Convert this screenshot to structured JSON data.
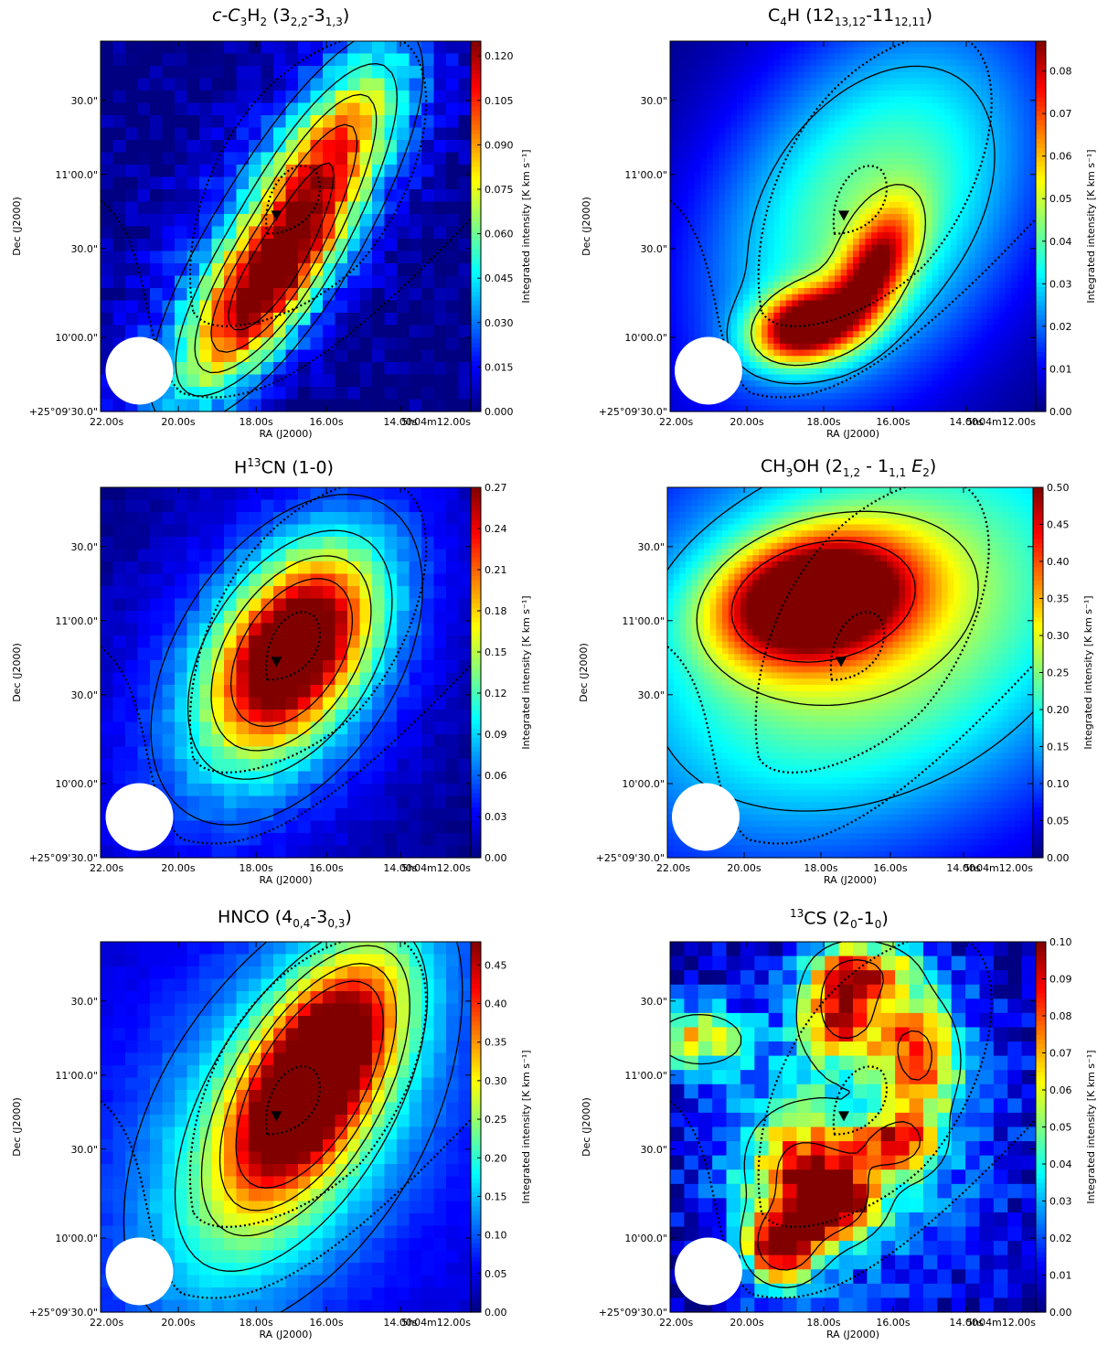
{
  "figure": {
    "panels": [
      {
        "title": {
          "main": "c-C",
          "s1": "3",
          "m2": "H",
          "s2": "2",
          "m3": " (3",
          "s3": "2,2",
          "m4": "-3",
          "s4": "1,3",
          "m5": ")"
        }
      },
      {
        "title": {
          "main": "C",
          "s1": "4",
          "m2": "H (12",
          "s2": "13,12",
          "m3": "-11",
          "s3": "12,11",
          "m4": ")",
          "s4": "",
          "m5": ""
        }
      },
      {
        "title": {
          "sup": "13",
          "main": "H",
          "m2": "CN (1-0)"
        }
      },
      {
        "title": {
          "main": "CH",
          "s1": "3",
          "m2": "OH (2",
          "s2": "1,2",
          "m3": " - 1",
          "s3": "1,1",
          "m4": " E",
          "s4": "2",
          "m5": ")"
        }
      },
      {
        "title": {
          "main": "HNCO (4",
          "s1": "0,4",
          "m2": "-3",
          "s2": "0,3",
          "m3": ")"
        }
      },
      {
        "title": {
          "sup": "13",
          "main": "CS (2",
          "s1": "0",
          "m2": "-1",
          "s2": "0",
          "m3": ")"
        }
      }
    ]
  },
  "chart_data": [
    {
      "type": "heatmap",
      "title": "c-C3H2 (3_2,2-3_1,3)",
      "xlabel": "RA (J2000)",
      "ylabel": "Dec (J2000)",
      "x_ticks": [
        "22.00s",
        "20.00s",
        "18.00s",
        "16.00s",
        "14.00s",
        "5h04m12.00s"
      ],
      "y_ticks": [
        "+25°09'30.0\"",
        "10'00.0\"",
        "30.0\"",
        "11'00.0\"",
        "30.0\""
      ],
      "colorbar_label": "Integrated intensity [K km s⁻¹]",
      "colorbar_ticks": [
        "0.000",
        "0.015",
        "0.030",
        "0.045",
        "0.060",
        "0.075",
        "0.090",
        "0.105",
        "0.120"
      ],
      "colorbar_range": [
        0,
        0.125
      ],
      "peak": [
        18.2,
        10.2
      ],
      "peak_value": 0.12,
      "colormap": "jet",
      "beam_marker": "white circle",
      "source_marker": "black triangle"
    },
    {
      "type": "heatmap",
      "title": "C4H (12_13,12-11_12,11)",
      "xlabel": "RA (J2000)",
      "ylabel": "Dec (J2000)",
      "x_ticks": [
        "22.00s",
        "20.00s",
        "18.00s",
        "16.00s",
        "14.00s",
        "5h04m12.00s"
      ],
      "y_ticks": [
        "+25°09'30.0\"",
        "10'00.0\"",
        "30.0\"",
        "11'00.0\"",
        "30.0\""
      ],
      "colorbar_label": "Integrated intensity [K km s⁻¹]",
      "colorbar_ticks": [
        "0.00",
        "0.01",
        "0.02",
        "0.03",
        "0.04",
        "0.05",
        "0.06",
        "0.07",
        "0.08"
      ],
      "colorbar_range": [
        0,
        0.087
      ],
      "peak": [
        18.2,
        10.0
      ],
      "peak_value": 0.085,
      "colormap": "jet",
      "beam_marker": "white circle",
      "source_marker": "black triangle"
    },
    {
      "type": "heatmap",
      "title": "H13CN (1-0)",
      "xlabel": "RA (J2000)",
      "ylabel": "Dec (J2000)",
      "x_ticks": [
        "22.00s",
        "20.00s",
        "18.00s",
        "16.00s",
        "14.00s",
        "5h04m12.00s"
      ],
      "y_ticks": [
        "+25°09'30.0\"",
        "10'00.0\"",
        "30.0\"",
        "11'00.0\"",
        "30.0\""
      ],
      "colorbar_label": "Integrated intensity [K km s⁻¹]",
      "colorbar_ticks": [
        "0.00",
        "0.03",
        "0.06",
        "0.09",
        "0.12",
        "0.15",
        "0.18",
        "0.21",
        "0.24",
        "0.27"
      ],
      "colorbar_range": [
        0,
        0.27
      ],
      "peak": [
        16.5,
        10.95
      ],
      "peak_value": 0.27,
      "colormap": "jet",
      "beam_marker": "white circle",
      "source_marker": "black triangle"
    },
    {
      "type": "heatmap",
      "title": "CH3OH (2_1,2 - 1_1,1 E2)",
      "xlabel": "RA (J2000)",
      "ylabel": "Dec (J2000)",
      "x_ticks": [
        "22.00s",
        "20.00s",
        "18.00s",
        "16.00s",
        "14.00s",
        "5h04m12.00s"
      ],
      "y_ticks": [
        "+25°09'30.0\"",
        "10'00.0\"",
        "30.0\"",
        "11'00.0\"",
        "30.0\""
      ],
      "colorbar_label": "Integrated intensity [K km s⁻¹]",
      "colorbar_ticks": [
        "0.00",
        "0.05",
        "0.10",
        "0.15",
        "0.20",
        "0.25",
        "0.30",
        "0.35",
        "0.40",
        "0.45",
        "0.50"
      ],
      "colorbar_range": [
        0,
        0.5
      ],
      "peak": [
        17.9,
        11.15
      ],
      "peak_value": 0.48,
      "colormap": "jet",
      "beam_marker": "white circle",
      "source_marker": "black triangle"
    },
    {
      "type": "heatmap",
      "title": "HNCO (4_0,4-3_0,3)",
      "xlabel": "RA (J2000)",
      "ylabel": "Dec (J2000)",
      "x_ticks": [
        "22.00s",
        "20.00s",
        "18.00s",
        "16.00s",
        "14.00s",
        "5h04m12.00s"
      ],
      "y_ticks": [
        "+25°09'30.0\"",
        "10'00.0\"",
        "30.0\"",
        "11'00.0\"",
        "30.0\""
      ],
      "colorbar_label": "Integrated intensity [K km s⁻¹]",
      "colorbar_ticks": [
        "0.00",
        "0.05",
        "0.10",
        "0.15",
        "0.20",
        "0.25",
        "0.30",
        "0.35",
        "0.40",
        "0.45"
      ],
      "colorbar_range": [
        0,
        0.48
      ],
      "peak": [
        15.7,
        11.1
      ],
      "peak_value": 0.47,
      "colormap": "jet",
      "beam_marker": "white circle",
      "source_marker": "black triangle"
    },
    {
      "type": "heatmap",
      "title": "13CS (2_0-1_0)",
      "xlabel": "RA (J2000)",
      "ylabel": "Dec (J2000)",
      "x_ticks": [
        "22.00s",
        "20.00s",
        "18.00s",
        "16.00s",
        "14.00s",
        "5h04m12.00s"
      ],
      "y_ticks": [
        "+25°09'30.0\"",
        "10'00.0\"",
        "30.0\"",
        "11'00.0\"",
        "30.0\""
      ],
      "colorbar_label": "Integrated intensity [K km s⁻¹]",
      "colorbar_ticks": [
        "0.00",
        "0.01",
        "0.02",
        "0.03",
        "0.04",
        "0.05",
        "0.06",
        "0.07",
        "0.08",
        "0.09",
        "0.10"
      ],
      "colorbar_range": [
        0,
        0.1
      ],
      "peak": [
        18.5,
        9.9
      ],
      "peak_value": 0.1,
      "colormap": "jet",
      "beam_marker": "white circle",
      "source_marker": "black triangle"
    }
  ]
}
